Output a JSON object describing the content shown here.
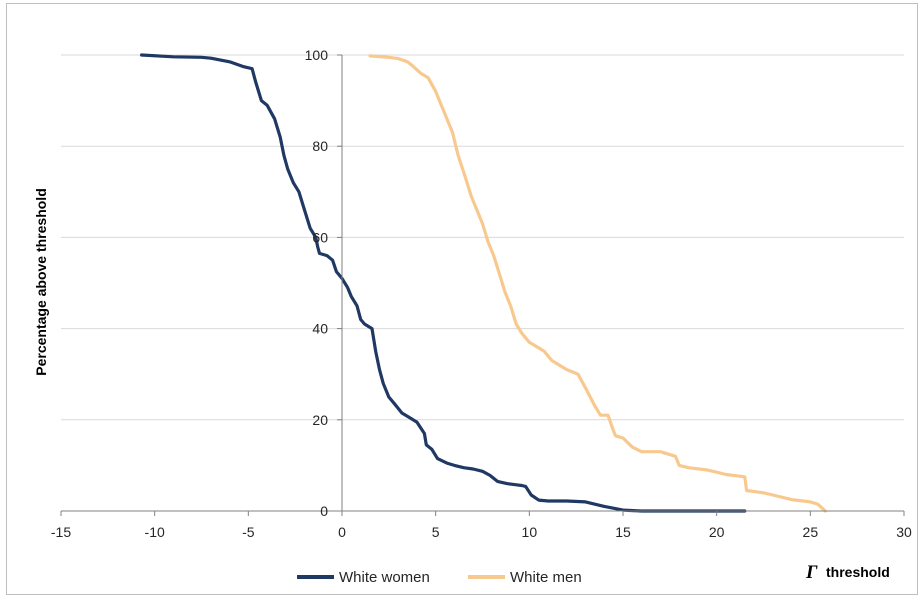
{
  "chart_data": {
    "type": "line",
    "title": "",
    "ylabel": "Percentage above threshold",
    "xlabel_symbol": "Γ",
    "xlabel_text": "threshold",
    "xlim": [
      -15,
      30
    ],
    "ylim": [
      0,
      100
    ],
    "x_ticks": [
      "-15",
      "-10",
      "-5",
      "0",
      "5",
      "10",
      "15",
      "20",
      "25",
      "30"
    ],
    "y_ticks": [
      "0",
      "20",
      "40",
      "60",
      "80",
      "100"
    ],
    "grid": "horizontal",
    "legend_position": "bottom",
    "series": [
      {
        "name": "White women",
        "color": "#1f3864",
        "x": [
          -10.7,
          -9,
          -7.5,
          -7,
          -6,
          -5.3,
          -4.8,
          -4.6,
          -4.3,
          -4,
          -3.6,
          -3.3,
          -3.1,
          -2.9,
          -2.6,
          -2.3,
          -2,
          -1.7,
          -1.4,
          -1.3,
          -1.2,
          -0.8,
          -0.5,
          -0.3,
          0,
          0.3,
          0.5,
          0.8,
          1,
          1.2,
          1.6,
          1.8,
          2,
          2.2,
          2.5,
          2.8,
          3.2,
          3.6,
          4,
          4.4,
          4.5,
          4.8,
          5.1,
          5.6,
          6,
          6.5,
          7,
          7.5,
          7.9,
          8.3,
          8.8,
          9.2,
          9.6,
          9.8,
          10.1,
          10.5,
          11,
          12,
          13,
          14,
          15,
          16,
          18,
          20,
          21.5
        ],
        "y": [
          100,
          99.6,
          99.5,
          99.3,
          98.5,
          97.5,
          97,
          94,
          90,
          89,
          86,
          82,
          78,
          75,
          72,
          70,
          66,
          62,
          60,
          58,
          56.5,
          56,
          55,
          52.5,
          51,
          49,
          47,
          45,
          42,
          41,
          40,
          35,
          31,
          28,
          25,
          23.5,
          21.5,
          20.5,
          19.5,
          17,
          14.5,
          13.5,
          11.5,
          10.5,
          10,
          9.5,
          9.2,
          8.7,
          7.8,
          6.5,
          6,
          5.8,
          5.6,
          5.4,
          3.5,
          2.4,
          2.2,
          2.2,
          2,
          1,
          0.2,
          0,
          0,
          0,
          0
        ]
      },
      {
        "name": "White men",
        "color": "#f8c98e",
        "x": [
          1.5,
          2.5,
          3,
          3.5,
          3.8,
          4.2,
          4.6,
          5,
          5.3,
          5.6,
          5.9,
          6.2,
          6.6,
          6.9,
          7.2,
          7.5,
          7.8,
          8.1,
          8.4,
          8.7,
          9,
          9.3,
          9.6,
          10,
          10.4,
          10.8,
          11.2,
          11.6,
          12,
          12.3,
          12.6,
          13,
          13.5,
          13.8,
          14.2,
          14.5,
          14.6,
          15,
          15.5,
          16,
          17,
          17.8,
          18,
          18.5,
          19.5,
          20,
          20.5,
          21.5,
          21.6,
          22.5,
          23,
          24,
          25,
          25.4,
          25.8
        ],
        "y": [
          99.8,
          99.5,
          99.2,
          98.5,
          97.5,
          96,
          95,
          92,
          89,
          86,
          83,
          78,
          73,
          69,
          66,
          63,
          59,
          56,
          52,
          48,
          45,
          41,
          39,
          37,
          36,
          35,
          33,
          32,
          31,
          30.5,
          30,
          27,
          23,
          21,
          21,
          17.5,
          16.5,
          16,
          14,
          13,
          13,
          12,
          10,
          9.5,
          9,
          8.5,
          8,
          7.5,
          4.5,
          4,
          3.5,
          2.5,
          2,
          1.5,
          0
        ]
      }
    ]
  }
}
